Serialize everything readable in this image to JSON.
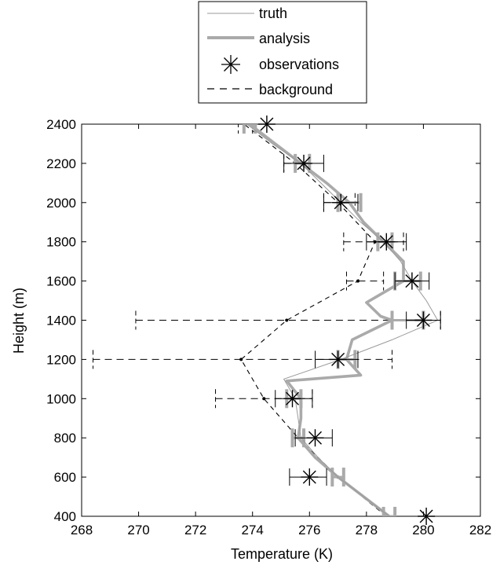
{
  "chart_data": {
    "type": "line",
    "xlabel": "Temperature (K)",
    "ylabel": "Height (m)",
    "xlim": [
      268,
      282
    ],
    "ylim": [
      400,
      2400
    ],
    "xticks": [
      268,
      270,
      272,
      274,
      276,
      278,
      280,
      282
    ],
    "yticks": [
      400,
      600,
      800,
      1000,
      1200,
      1400,
      1600,
      1800,
      2000,
      2200,
      2400
    ],
    "grid": false,
    "legend_position": "top-center",
    "series": [
      {
        "name": "truth",
        "color": "#9a9a9a",
        "style": "thin-solid",
        "points": [
          [
            278.8,
            400
          ],
          [
            277.9,
            500
          ],
          [
            277.0,
            600
          ],
          [
            276.3,
            700
          ],
          [
            275.7,
            800
          ],
          [
            275.6,
            900
          ],
          [
            275.5,
            1000
          ],
          [
            275.1,
            1100
          ],
          [
            277.1,
            1200
          ],
          [
            278.9,
            1300
          ],
          [
            280.5,
            1400
          ],
          [
            280.1,
            1500
          ],
          [
            279.6,
            1600
          ],
          [
            279.2,
            1700
          ],
          [
            278.6,
            1800
          ],
          [
            277.8,
            1900
          ],
          [
            277.1,
            2000
          ],
          [
            276.4,
            2100
          ],
          [
            275.7,
            2200
          ],
          [
            274.7,
            2300
          ],
          [
            273.8,
            2400
          ]
        ]
      },
      {
        "name": "analysis",
        "color": "#aaaaaa",
        "style": "thick-solid",
        "points": [
          [
            278.8,
            400
          ],
          [
            277.9,
            500
          ],
          [
            277.0,
            600
          ],
          [
            276.2,
            700
          ],
          [
            275.6,
            800
          ],
          [
            275.7,
            900
          ],
          [
            275.7,
            1000
          ],
          [
            275.2,
            1090
          ],
          [
            277.8,
            1120
          ],
          [
            277.3,
            1200
          ],
          [
            277.5,
            1300
          ],
          [
            278.9,
            1400
          ],
          [
            278.5,
            1420
          ],
          [
            278.0,
            1490
          ],
          [
            279.3,
            1600
          ],
          [
            279.3,
            1700
          ],
          [
            278.6,
            1800
          ],
          [
            277.9,
            1900
          ],
          [
            277.4,
            2000
          ],
          [
            276.6,
            2100
          ],
          [
            275.7,
            2200
          ],
          [
            274.8,
            2300
          ],
          [
            273.9,
            2400
          ]
        ]
      },
      {
        "name": "background",
        "color": "#000000",
        "style": "dashed",
        "points": [
          [
            278.7,
            400
          ],
          [
            277.0,
            600
          ],
          [
            275.6,
            800
          ],
          [
            274.4,
            1000
          ],
          [
            273.6,
            1200
          ],
          [
            275.2,
            1400
          ],
          [
            277.7,
            1600
          ],
          [
            278.3,
            1800
          ],
          [
            277.0,
            2000
          ],
          [
            275.5,
            2200
          ],
          [
            273.7,
            2400
          ]
        ]
      }
    ],
    "observations": {
      "name": "observations",
      "marker": "asterisk",
      "points": [
        [
          280.1,
          400
        ],
        [
          276.0,
          600
        ],
        [
          276.2,
          800
        ],
        [
          275.4,
          1000
        ],
        [
          277.0,
          1200
        ],
        [
          280.0,
          1400
        ],
        [
          279.6,
          1600
        ],
        [
          278.7,
          1800
        ],
        [
          277.1,
          2000
        ],
        [
          275.8,
          2200
        ],
        [
          274.5,
          2400
        ]
      ]
    },
    "observation_errorbars": [
      {
        "y": 1000,
        "x": [
          274.8,
          276.1
        ]
      },
      {
        "y": 1200,
        "x": [
          276.2,
          277.7
        ]
      },
      {
        "y": 1400,
        "x": [
          279.4,
          280.6
        ]
      },
      {
        "y": 1600,
        "x": [
          279.0,
          280.2
        ]
      },
      {
        "y": 1800,
        "x": [
          278.0,
          279.4
        ]
      },
      {
        "y": 2000,
        "x": [
          276.5,
          277.7
        ]
      },
      {
        "y": 2200,
        "x": [
          275.1,
          276.5
        ]
      },
      {
        "y": 600,
        "x": [
          275.3,
          276.6
        ]
      },
      {
        "y": 800,
        "x": [
          275.5,
          276.8
        ]
      }
    ],
    "background_errorbars": [
      {
        "y": 1000,
        "x": [
          272.7,
          276.1
        ]
      },
      {
        "y": 1200,
        "x": [
          268.4,
          278.9
        ]
      },
      {
        "y": 1400,
        "x": [
          269.9,
          280.6
        ]
      },
      {
        "y": 1600,
        "x": [
          277.3,
          278.6
        ]
      },
      {
        "y": 1800,
        "x": [
          277.2,
          279.3
        ]
      },
      {
        "y": 2000,
        "x": [
          276.5,
          277.6
        ]
      },
      {
        "y": 2200,
        "x": [
          275.1,
          276.0
        ]
      },
      {
        "y": 2400,
        "x": [
          273.5,
          274.0
        ]
      }
    ],
    "analysis_errorbars": [
      {
        "y": 400,
        "x": [
          278.6,
          279.0
        ]
      },
      {
        "y": 600,
        "x": [
          276.8,
          277.2
        ]
      },
      {
        "y": 800,
        "x": [
          275.4,
          275.8
        ]
      },
      {
        "y": 1000,
        "x": [
          275.2,
          275.7
        ]
      },
      {
        "y": 1200,
        "x": [
          277.0,
          277.6
        ]
      },
      {
        "y": 1400,
        "x": [
          278.9,
          280.0
        ]
      },
      {
        "y": 1600,
        "x": [
          279.0,
          279.9
        ]
      },
      {
        "y": 1800,
        "x": [
          278.4,
          278.9
        ]
      },
      {
        "y": 2000,
        "x": [
          277.0,
          277.8
        ]
      },
      {
        "y": 2200,
        "x": [
          275.5,
          276.0
        ]
      },
      {
        "y": 2400,
        "x": [
          273.7,
          274.1
        ]
      }
    ]
  }
}
